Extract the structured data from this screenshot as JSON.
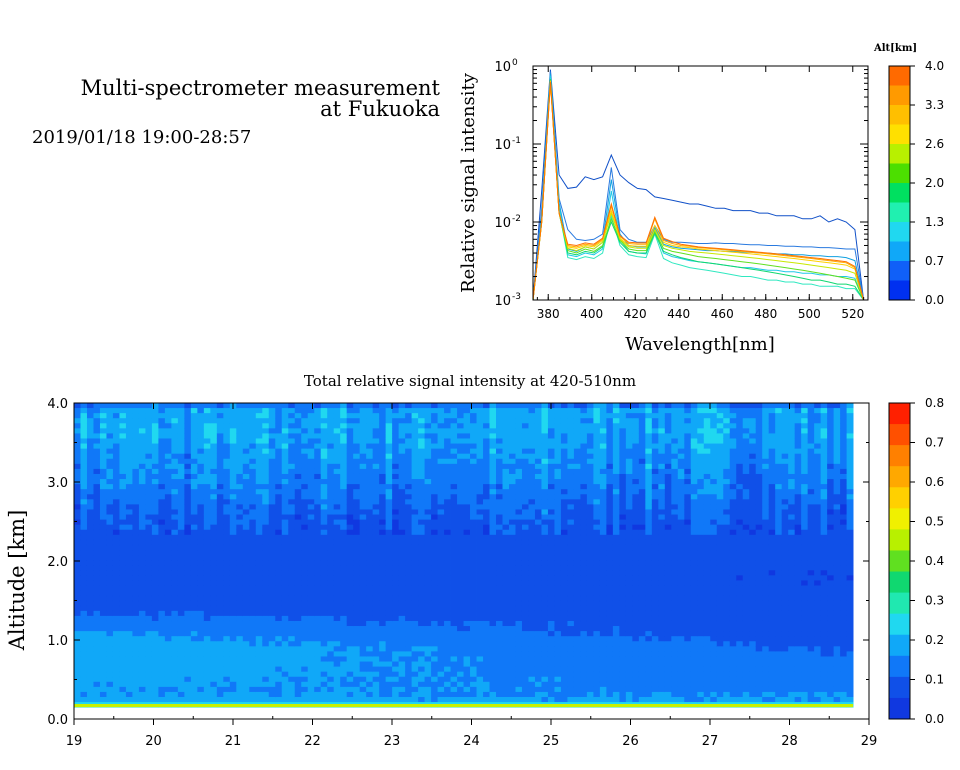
{
  "header": {
    "title_line1": "Multi-spectrometer measurement",
    "title_line2": "at Fukuoka",
    "datetime": "2019/01/18 19:00-28:57"
  },
  "chart_data": [
    {
      "type": "line",
      "xlabel": "Wavelength[nm]",
      "ylabel": "Relative signal intensity",
      "yscale": "log",
      "xlim": [
        373,
        527
      ],
      "ylim": [
        0.001,
        1
      ],
      "xticks": [
        "380",
        "400",
        "420",
        "440",
        "460",
        "480",
        "500",
        "520"
      ],
      "xtick_values": [
        380,
        400,
        420,
        440,
        460,
        480,
        500,
        520
      ],
      "ytick_base": "10",
      "ytick_exps": [
        "0",
        "-1",
        "-2",
        "-3"
      ],
      "grid": false,
      "colorbar": {
        "label": "Alt[km]",
        "ticks": [
          "4.0",
          "3.3",
          "2.6",
          "2.0",
          "1.3",
          "0.7",
          "0.0"
        ],
        "colors": [
          "#ff6a00",
          "#ff9a00",
          "#ffbf00",
          "#ffe000",
          "#b8f000",
          "#4cdf00",
          "#00e060",
          "#20f0b0",
          "#20d8f0",
          "#10a8f8",
          "#1060f8",
          "#0030f0"
        ]
      },
      "series_x": [
        373,
        377,
        381,
        385,
        389,
        393,
        397,
        401,
        405,
        409,
        413,
        417,
        421,
        425,
        429,
        433,
        437,
        441,
        445,
        449,
        453,
        457,
        461,
        465,
        469,
        473,
        477,
        481,
        485,
        489,
        493,
        497,
        501,
        505,
        509,
        513,
        517,
        521,
        525
      ],
      "series": [
        {
          "color": "#1050c8",
          "values": [
            0.001,
            0.025,
            0.9,
            0.04,
            0.027,
            0.028,
            0.038,
            0.035,
            0.038,
            0.072,
            0.04,
            0.032,
            0.027,
            0.026,
            0.021,
            0.02,
            0.019,
            0.018,
            0.017,
            0.017,
            0.016,
            0.015,
            0.015,
            0.014,
            0.014,
            0.014,
            0.013,
            0.013,
            0.012,
            0.012,
            0.012,
            0.011,
            0.011,
            0.012,
            0.01,
            0.011,
            0.01,
            0.008,
            0.001
          ]
        },
        {
          "color": "#2a7adf",
          "values": [
            0.001,
            0.015,
            0.85,
            0.02,
            0.008,
            0.006,
            0.0058,
            0.006,
            0.007,
            0.05,
            0.008,
            0.006,
            0.0055,
            0.0055,
            0.009,
            0.006,
            0.0055,
            0.0055,
            0.0054,
            0.0053,
            0.0053,
            0.0054,
            0.0053,
            0.0053,
            0.0052,
            0.0051,
            0.0051,
            0.005,
            0.005,
            0.0049,
            0.0049,
            0.0048,
            0.0048,
            0.0047,
            0.0047,
            0.0046,
            0.0045,
            0.0045,
            0.001
          ]
        },
        {
          "color": "#10a0e0",
          "values": [
            0.001,
            0.012,
            0.8,
            0.018,
            0.0045,
            0.0042,
            0.0048,
            0.0045,
            0.0055,
            0.035,
            0.007,
            0.005,
            0.0048,
            0.0048,
            0.0085,
            0.0052,
            0.0048,
            0.0046,
            0.0045,
            0.0044,
            0.0043,
            0.0043,
            0.0042,
            0.0042,
            0.0041,
            0.0041,
            0.004,
            0.004,
            0.0039,
            0.0039,
            0.0038,
            0.0038,
            0.0037,
            0.0037,
            0.0036,
            0.0036,
            0.0035,
            0.0032,
            0.001
          ]
        },
        {
          "color": "#20c8e8",
          "values": [
            0.001,
            0.011,
            0.75,
            0.016,
            0.0038,
            0.0036,
            0.004,
            0.0038,
            0.0045,
            0.025,
            0.006,
            0.0042,
            0.004,
            0.0039,
            0.0075,
            0.004,
            0.0036,
            0.0034,
            0.0032,
            0.0031,
            0.003,
            0.0029,
            0.0028,
            0.0027,
            0.0026,
            0.0026,
            0.0025,
            0.0024,
            0.0024,
            0.0023,
            0.0023,
            0.0022,
            0.0022,
            0.0021,
            0.0021,
            0.002,
            0.002,
            0.0019,
            0.001
          ]
        },
        {
          "color": "#30e8c0",
          "values": [
            0.001,
            0.01,
            0.7,
            0.014,
            0.0035,
            0.0033,
            0.0036,
            0.0034,
            0.004,
            0.012,
            0.005,
            0.0038,
            0.0036,
            0.0035,
            0.007,
            0.0034,
            0.003,
            0.0028,
            0.0026,
            0.0025,
            0.0024,
            0.0023,
            0.0022,
            0.0021,
            0.002,
            0.002,
            0.0019,
            0.0018,
            0.0018,
            0.0017,
            0.0017,
            0.0016,
            0.0016,
            0.0015,
            0.0015,
            0.0015,
            0.0014,
            0.0014,
            0.001
          ]
        },
        {
          "color": "#10d870",
          "values": [
            0.001,
            0.01,
            0.68,
            0.013,
            0.004,
            0.0038,
            0.0042,
            0.004,
            0.0048,
            0.01,
            0.0055,
            0.0042,
            0.004,
            0.004,
            0.0072,
            0.0042,
            0.0038,
            0.0035,
            0.0033,
            0.0031,
            0.003,
            0.0029,
            0.0028,
            0.0027,
            0.0026,
            0.0025,
            0.0024,
            0.0023,
            0.0022,
            0.0021,
            0.002,
            0.0019,
            0.0018,
            0.0018,
            0.0017,
            0.0016,
            0.0016,
            0.0015,
            0.001
          ]
        },
        {
          "color": "#60e020",
          "values": [
            0.001,
            0.01,
            0.66,
            0.013,
            0.0043,
            0.004,
            0.0045,
            0.0042,
            0.005,
            0.011,
            0.0058,
            0.0045,
            0.0043,
            0.0043,
            0.0075,
            0.0046,
            0.0042,
            0.004,
            0.0038,
            0.0036,
            0.0035,
            0.0034,
            0.0033,
            0.0032,
            0.0031,
            0.003,
            0.0029,
            0.0028,
            0.0027,
            0.0026,
            0.0025,
            0.0024,
            0.0023,
            0.0022,
            0.0021,
            0.002,
            0.0019,
            0.0018,
            0.001
          ]
        },
        {
          "color": "#c8e800",
          "values": [
            0.001,
            0.01,
            0.65,
            0.013,
            0.0046,
            0.0043,
            0.0048,
            0.0045,
            0.0055,
            0.013,
            0.006,
            0.0048,
            0.0046,
            0.0046,
            0.008,
            0.005,
            0.0046,
            0.0044,
            0.0042,
            0.0041,
            0.004,
            0.0039,
            0.0038,
            0.0037,
            0.0036,
            0.0035,
            0.0034,
            0.0033,
            0.0032,
            0.0031,
            0.003,
            0.0029,
            0.0028,
            0.0027,
            0.0026,
            0.0025,
            0.0024,
            0.0022,
            0.001
          ]
        },
        {
          "color": "#ffd000",
          "values": [
            0.001,
            0.01,
            0.64,
            0.013,
            0.0048,
            0.0046,
            0.005,
            0.0048,
            0.0058,
            0.014,
            0.0062,
            0.005,
            0.0049,
            0.0049,
            0.009,
            0.0055,
            0.005,
            0.0048,
            0.0047,
            0.0045,
            0.0044,
            0.0043,
            0.0042,
            0.0041,
            0.004,
            0.0039,
            0.0038,
            0.0037,
            0.0036,
            0.0035,
            0.0034,
            0.0033,
            0.0032,
            0.0031,
            0.003,
            0.0029,
            0.0028,
            0.0025,
            0.001
          ]
        },
        {
          "color": "#ffaa00",
          "values": [
            0.001,
            0.01,
            0.63,
            0.013,
            0.005,
            0.0048,
            0.0052,
            0.005,
            0.006,
            0.016,
            0.0065,
            0.0053,
            0.0052,
            0.0052,
            0.011,
            0.0058,
            0.0053,
            0.005,
            0.0049,
            0.0047,
            0.0046,
            0.0045,
            0.0044,
            0.0043,
            0.0042,
            0.0041,
            0.004,
            0.0039,
            0.0038,
            0.0037,
            0.0036,
            0.0035,
            0.0034,
            0.0033,
            0.0032,
            0.0031,
            0.003,
            0.0026,
            0.001
          ]
        },
        {
          "color": "#ff7000",
          "values": [
            0.001,
            0.01,
            0.62,
            0.013,
            0.0052,
            0.005,
            0.0054,
            0.0052,
            0.0062,
            0.017,
            0.0067,
            0.0055,
            0.0054,
            0.0054,
            0.0115,
            0.0062,
            0.0056,
            0.0052,
            0.005,
            0.0048,
            0.0047,
            0.0046,
            0.0045,
            0.0044,
            0.0043,
            0.0042,
            0.0041,
            0.004,
            0.0039,
            0.0038,
            0.0037,
            0.0036,
            0.0035,
            0.0034,
            0.0033,
            0.0032,
            0.0031,
            0.0027,
            0.001
          ]
        }
      ]
    },
    {
      "type": "heatmap",
      "title": "Total relative signal intensity at 420-510nm",
      "xlabel": "",
      "ylabel": "Altitude [km]",
      "xlim": [
        19,
        29
      ],
      "ylim": [
        0,
        4
      ],
      "xticks": [
        "19",
        "20",
        "21",
        "22",
        "23",
        "24",
        "25",
        "26",
        "27",
        "28",
        "29"
      ],
      "xtick_values": [
        19,
        20,
        21,
        22,
        23,
        24,
        25,
        26,
        27,
        28,
        29
      ],
      "yticks": [
        "0.0",
        "1.0",
        "2.0",
        "3.0",
        "4.0"
      ],
      "ytick_values": [
        0,
        1,
        2,
        3,
        4
      ],
      "data_xlim": [
        19,
        28.8
      ],
      "data_ylim": [
        0.15,
        4.0
      ],
      "colorbar": {
        "ticks": [
          "0.8",
          "0.7",
          "0.6",
          "0.5",
          "0.4",
          "0.3",
          "0.2",
          "0.1",
          "0.0"
        ],
        "colors": [
          "#ff2000",
          "#ff5000",
          "#ff8000",
          "#ffa800",
          "#ffd000",
          "#f0f000",
          "#b8f000",
          "#60e020",
          "#10d870",
          "#20e8b0",
          "#20d8f0",
          "#10a8f8",
          "#1078f8",
          "#1050e8",
          "#1038e0"
        ]
      },
      "altitude_profile": {
        "altitudes": [
          0.15,
          0.2,
          0.35,
          0.6,
          0.9,
          1.1,
          1.4,
          1.8,
          2.2,
          2.6,
          3.0,
          3.3,
          3.6,
          3.9,
          4.0
        ],
        "values_early": [
          0.35,
          0.18,
          0.16,
          0.18,
          0.2,
          0.16,
          0.09,
          0.07,
          0.07,
          0.1,
          0.14,
          0.16,
          0.18,
          0.18,
          0.1
        ],
        "values_late": [
          0.35,
          0.17,
          0.15,
          0.13,
          0.1,
          0.08,
          0.07,
          0.06,
          0.07,
          0.1,
          0.14,
          0.16,
          0.18,
          0.18,
          0.1
        ]
      }
    }
  ]
}
